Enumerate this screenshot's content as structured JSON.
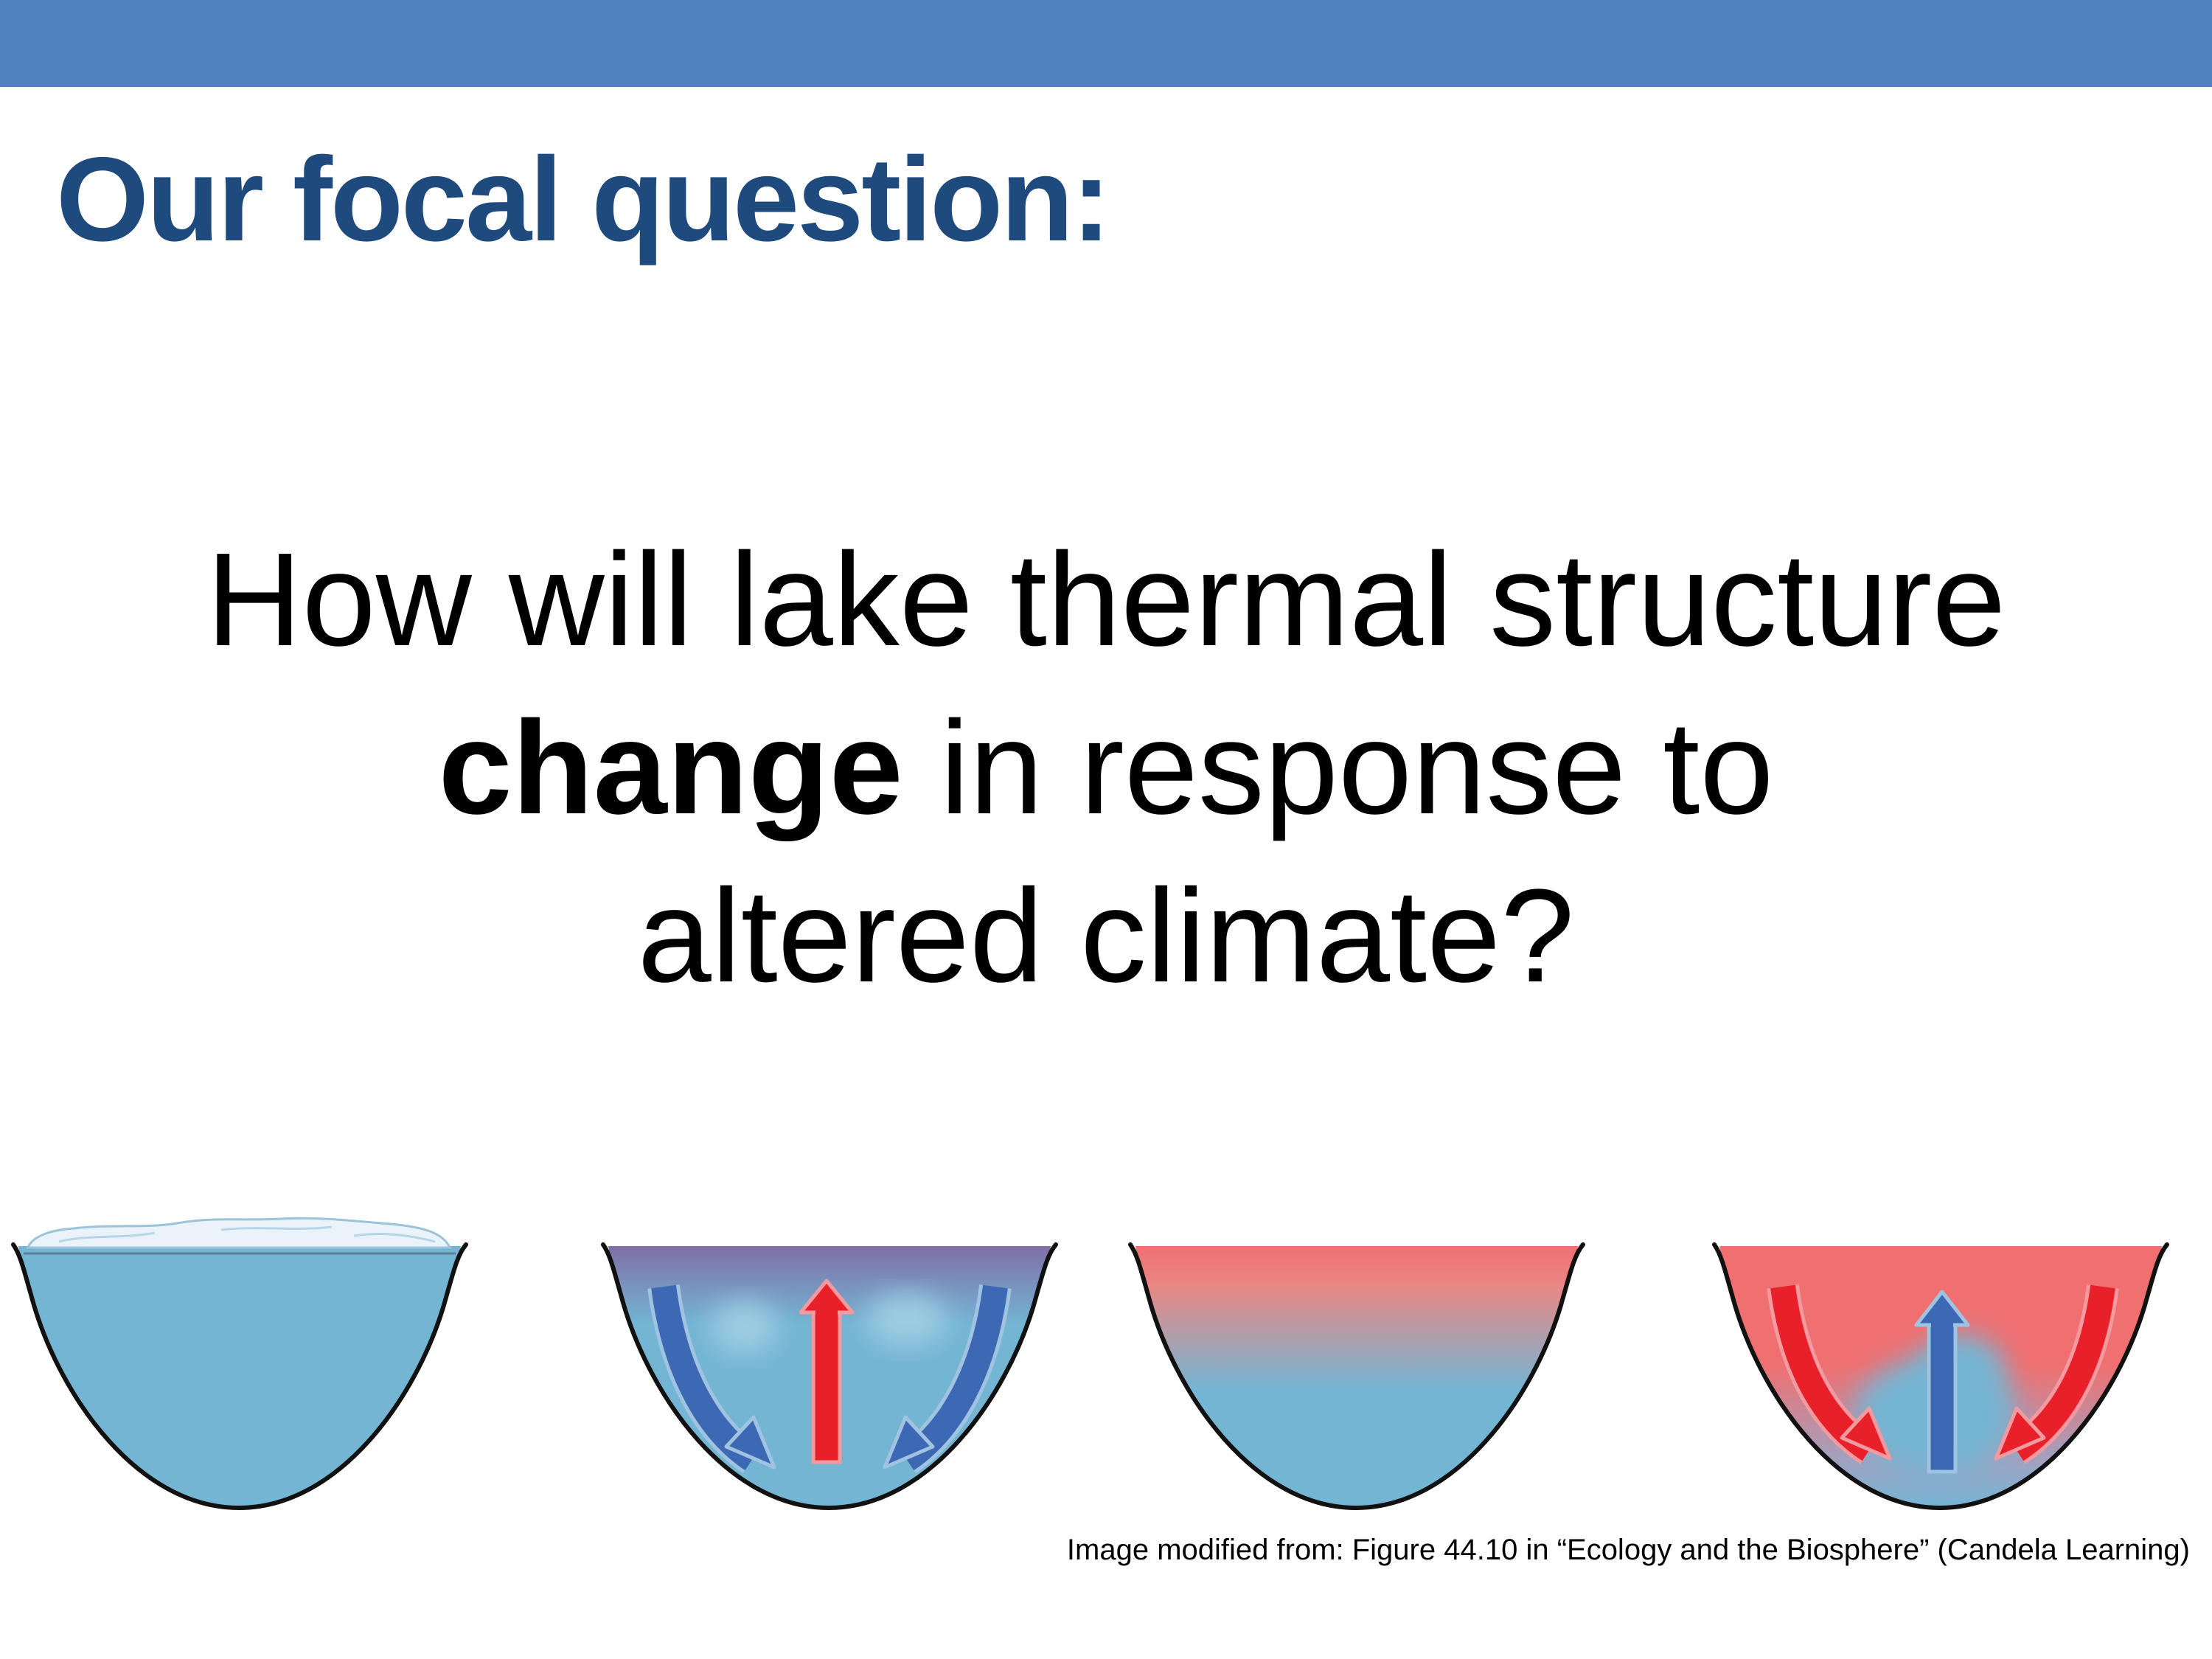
{
  "slide": {
    "title": "Our focal question:",
    "question": {
      "line1": "How will lake thermal structure",
      "line2_bold": "change",
      "line2_rest": " in response to",
      "line3": "altered climate?"
    },
    "caption": "Image modified from: Figure 44.10 in “Ecology and the Biosphere” (Candela Learning)"
  },
  "colors": {
    "header_bar": "#5081bd",
    "title": "#1f4a7d",
    "cold_water": "#74b5d4",
    "warm_water": "#f06f70",
    "cold_arrow": "#3d69b4",
    "warm_arrow": "#e8202a",
    "ice": "#e9f3f9"
  }
}
